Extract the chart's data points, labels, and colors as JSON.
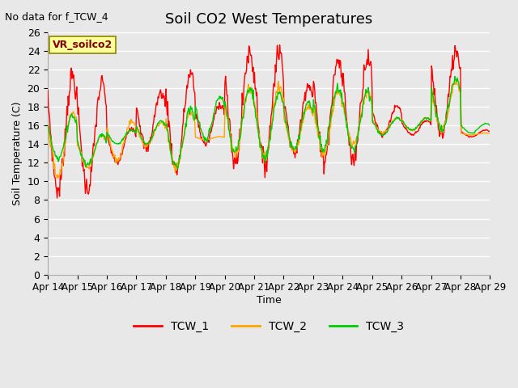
{
  "title": "Soil CO2 West Temperatures",
  "ylabel": "Soil Temperature (C)",
  "xlabel": "Time",
  "no_data_text": "No data for f_TCW_4",
  "vr_label": "VR_soilco2",
  "ylim": [
    0,
    26
  ],
  "yticks": [
    0,
    2,
    4,
    6,
    8,
    10,
    12,
    14,
    16,
    18,
    20,
    22,
    24,
    26
  ],
  "xtick_labels": [
    "Apr 14",
    "Apr 15",
    "Apr 16",
    "Apr 17",
    "Apr 18",
    "Apr 19",
    "Apr 20",
    "Apr 21",
    "Apr 22",
    "Apr 23",
    "Apr 24",
    "Apr 25",
    "Apr 26",
    "Apr 27",
    "Apr 28",
    "Apr 29"
  ],
  "line_colors": [
    "#ff0000",
    "#ffa500",
    "#00cc00"
  ],
  "line_labels": [
    "TCW_1",
    "TCW_2",
    "TCW_3"
  ],
  "bg_color": "#e8e8e8",
  "plot_bg": "#e8e8e8",
  "grid_color": "#ffffff",
  "vr_box_color": "#ffff99",
  "vr_text_color": "#800000",
  "n_points_per_day": 48,
  "day_peaks_r": [
    21.3,
    20.5,
    15.8,
    19.5,
    21.5,
    18.3,
    23.9,
    24.0,
    20.5,
    23.0,
    23.3,
    18.0,
    16.5,
    24.0,
    15.5
  ],
  "day_troughs_r": [
    9.0,
    9.2,
    12.0,
    13.5,
    11.2,
    14.0,
    12.0,
    11.8,
    13.0,
    12.3,
    12.3,
    15.0,
    15.0,
    15.0,
    14.8
  ],
  "day_peaks_o": [
    17.5,
    15.0,
    16.5,
    16.3,
    17.5,
    14.8,
    20.0,
    20.1,
    18.0,
    19.5,
    19.5,
    16.8,
    16.8,
    20.5,
    15.2
  ],
  "day_troughs_o": [
    10.5,
    11.5,
    12.2,
    13.8,
    11.5,
    14.5,
    13.0,
    12.5,
    13.2,
    13.0,
    14.0,
    15.2,
    15.5,
    15.5,
    15.0
  ],
  "day_peaks_g": [
    17.0,
    15.0,
    15.5,
    16.5,
    17.7,
    19.0,
    20.0,
    19.5,
    18.5,
    20.0,
    19.5,
    16.8,
    16.8,
    21.0,
    16.2
  ],
  "day_troughs_g": [
    12.3,
    11.8,
    14.0,
    14.0,
    11.5,
    14.5,
    13.0,
    12.5,
    13.5,
    13.5,
    13.5,
    15.0,
    15.5,
    15.5,
    15.2
  ]
}
